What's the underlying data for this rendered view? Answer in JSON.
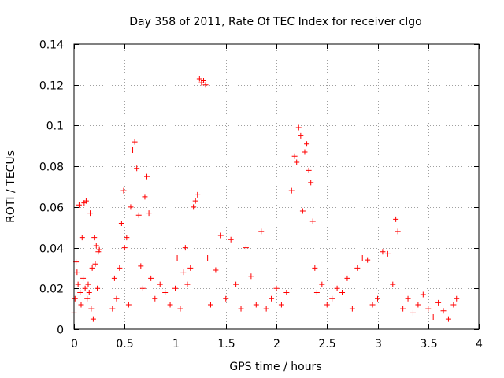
{
  "chart_data": {
    "type": "scatter",
    "title": "Day 358 of 2011, Rate Of TEC Index for receiver clgo",
    "xlabel": "GPS time / hours",
    "ylabel": "ROTI / TECUs",
    "xlim": [
      0,
      4
    ],
    "ylim": [
      0,
      0.14
    ],
    "x_ticks": [
      0,
      0.5,
      1,
      1.5,
      2,
      2.5,
      3,
      3.5,
      4
    ],
    "x_tick_labels": [
      "0",
      "0.5",
      "1",
      "1.5",
      "2",
      "2.5",
      "3",
      "3.5",
      "4"
    ],
    "y_ticks": [
      0,
      0.02,
      0.04,
      0.06,
      0.08,
      0.1,
      0.12,
      0.14
    ],
    "y_tick_labels": [
      "0",
      "0.02",
      "0.04",
      "0.06",
      "0.08",
      "0.1",
      "0.12",
      "0.14"
    ],
    "grid": true,
    "marker": "+",
    "marker_color": "#ff0000",
    "series": [
      {
        "name": "ROTI",
        "points": [
          [
            0.0,
            0.008
          ],
          [
            0.01,
            0.015
          ],
          [
            0.02,
            0.033
          ],
          [
            0.03,
            0.028
          ],
          [
            0.04,
            0.022
          ],
          [
            0.05,
            0.061
          ],
          [
            0.06,
            0.018
          ],
          [
            0.07,
            0.012
          ],
          [
            0.08,
            0.045
          ],
          [
            0.09,
            0.025
          ],
          [
            0.1,
            0.062
          ],
          [
            0.11,
            0.02
          ],
          [
            0.12,
            0.063
          ],
          [
            0.13,
            0.015
          ],
          [
            0.14,
            0.022
          ],
          [
            0.15,
            0.018
          ],
          [
            0.16,
            0.057
          ],
          [
            0.17,
            0.01
          ],
          [
            0.18,
            0.03
          ],
          [
            0.19,
            0.005
          ],
          [
            0.2,
            0.045
          ],
          [
            0.21,
            0.032
          ],
          [
            0.22,
            0.041
          ],
          [
            0.23,
            0.02
          ],
          [
            0.24,
            0.038
          ],
          [
            0.25,
            0.039
          ],
          [
            0.38,
            0.01
          ],
          [
            0.4,
            0.025
          ],
          [
            0.42,
            0.015
          ],
          [
            0.45,
            0.03
          ],
          [
            0.47,
            0.052
          ],
          [
            0.49,
            0.068
          ],
          [
            0.5,
            0.04
          ],
          [
            0.52,
            0.045
          ],
          [
            0.54,
            0.012
          ],
          [
            0.56,
            0.06
          ],
          [
            0.58,
            0.088
          ],
          [
            0.6,
            0.092
          ],
          [
            0.62,
            0.079
          ],
          [
            0.64,
            0.056
          ],
          [
            0.66,
            0.031
          ],
          [
            0.68,
            0.02
          ],
          [
            0.7,
            0.065
          ],
          [
            0.72,
            0.075
          ],
          [
            0.74,
            0.057
          ],
          [
            0.76,
            0.025
          ],
          [
            0.8,
            0.015
          ],
          [
            0.85,
            0.022
          ],
          [
            0.9,
            0.018
          ],
          [
            0.95,
            0.012
          ],
          [
            1.0,
            0.02
          ],
          [
            1.02,
            0.035
          ],
          [
            1.05,
            0.01
          ],
          [
            1.08,
            0.028
          ],
          [
            1.1,
            0.04
          ],
          [
            1.12,
            0.022
          ],
          [
            1.15,
            0.03
          ],
          [
            1.18,
            0.06
          ],
          [
            1.2,
            0.063
          ],
          [
            1.22,
            0.066
          ],
          [
            1.24,
            0.123
          ],
          [
            1.26,
            0.121
          ],
          [
            1.28,
            0.122
          ],
          [
            1.3,
            0.12
          ],
          [
            1.32,
            0.035
          ],
          [
            1.35,
            0.012
          ],
          [
            1.4,
            0.029
          ],
          [
            1.45,
            0.046
          ],
          [
            1.5,
            0.015
          ],
          [
            1.55,
            0.044
          ],
          [
            1.6,
            0.022
          ],
          [
            1.65,
            0.01
          ],
          [
            1.7,
            0.04
          ],
          [
            1.75,
            0.026
          ],
          [
            1.8,
            0.012
          ],
          [
            1.85,
            0.048
          ],
          [
            1.9,
            0.01
          ],
          [
            1.95,
            0.015
          ],
          [
            2.0,
            0.02
          ],
          [
            2.05,
            0.012
          ],
          [
            2.1,
            0.018
          ],
          [
            2.15,
            0.068
          ],
          [
            2.18,
            0.085
          ],
          [
            2.2,
            0.082
          ],
          [
            2.22,
            0.099
          ],
          [
            2.24,
            0.095
          ],
          [
            2.26,
            0.058
          ],
          [
            2.28,
            0.087
          ],
          [
            2.3,
            0.091
          ],
          [
            2.32,
            0.078
          ],
          [
            2.34,
            0.072
          ],
          [
            2.36,
            0.053
          ],
          [
            2.38,
            0.03
          ],
          [
            2.4,
            0.018
          ],
          [
            2.45,
            0.022
          ],
          [
            2.5,
            0.012
          ],
          [
            2.55,
            0.015
          ],
          [
            2.6,
            0.02
          ],
          [
            2.65,
            0.018
          ],
          [
            2.7,
            0.025
          ],
          [
            2.75,
            0.01
          ],
          [
            2.8,
            0.03
          ],
          [
            2.85,
            0.035
          ],
          [
            2.9,
            0.034
          ],
          [
            2.95,
            0.012
          ],
          [
            3.0,
            0.015
          ],
          [
            3.05,
            0.038
          ],
          [
            3.1,
            0.037
          ],
          [
            3.15,
            0.022
          ],
          [
            3.18,
            0.054
          ],
          [
            3.2,
            0.048
          ],
          [
            3.25,
            0.01
          ],
          [
            3.3,
            0.015
          ],
          [
            3.35,
            0.008
          ],
          [
            3.4,
            0.012
          ],
          [
            3.45,
            0.017
          ],
          [
            3.5,
            0.01
          ],
          [
            3.55,
            0.006
          ],
          [
            3.6,
            0.013
          ],
          [
            3.65,
            0.009
          ],
          [
            3.7,
            0.005
          ],
          [
            3.75,
            0.012
          ],
          [
            3.78,
            0.015
          ]
        ]
      }
    ]
  }
}
